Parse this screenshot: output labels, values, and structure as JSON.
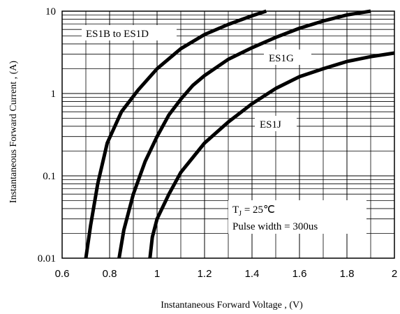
{
  "chart_data": {
    "type": "line",
    "title": "",
    "xlabel": "Instantaneous Forward Voltage , (V)",
    "ylabel": "Instantaneous Forward Current , (A)",
    "xlim": [
      0.6,
      2.0
    ],
    "ylim": [
      0.01,
      10
    ],
    "y_scale": "log",
    "grid": true,
    "x_ticks": [
      "0.6",
      "0.8",
      "1",
      "1.2",
      "1.4",
      "1.6",
      "1.8",
      "2"
    ],
    "y_ticks": [
      "0.01",
      "0.1",
      "1",
      "10"
    ],
    "series": [
      {
        "name": "ES1B to ES1D",
        "x": [
          0.7,
          0.72,
          0.75,
          0.79,
          0.85,
          0.92,
          1.0,
          1.1,
          1.2,
          1.3,
          1.4,
          1.46
        ],
        "y": [
          0.01,
          0.025,
          0.08,
          0.25,
          0.6,
          1.1,
          2.0,
          3.5,
          5.2,
          6.9,
          8.8,
          10
        ]
      },
      {
        "name": "ES1G",
        "x": [
          0.84,
          0.86,
          0.9,
          0.95,
          1.0,
          1.05,
          1.1,
          1.15,
          1.2,
          1.3,
          1.4,
          1.5,
          1.6,
          1.7,
          1.8,
          1.9
        ],
        "y": [
          0.01,
          0.022,
          0.06,
          0.15,
          0.3,
          0.55,
          0.85,
          1.25,
          1.65,
          2.6,
          3.6,
          4.8,
          6.2,
          7.6,
          9.0,
          10
        ]
      },
      {
        "name": "ES1J",
        "x": [
          0.97,
          0.98,
          1.0,
          1.05,
          1.1,
          1.2,
          1.3,
          1.4,
          1.5,
          1.6,
          1.7,
          1.8,
          1.9,
          2.0
        ],
        "y": [
          0.01,
          0.018,
          0.03,
          0.06,
          0.11,
          0.25,
          0.45,
          0.75,
          1.15,
          1.6,
          2.0,
          2.45,
          2.8,
          3.1
        ]
      }
    ],
    "annotations": {
      "label_es1b": "ES1B to ES1D",
      "label_es1g": "ES1G",
      "label_es1j": "ES1J",
      "tj_main": "T",
      "tj_sub": "J",
      "tj_value": " = 25℃",
      "pulse_width": "Pulse width = 300us"
    }
  }
}
